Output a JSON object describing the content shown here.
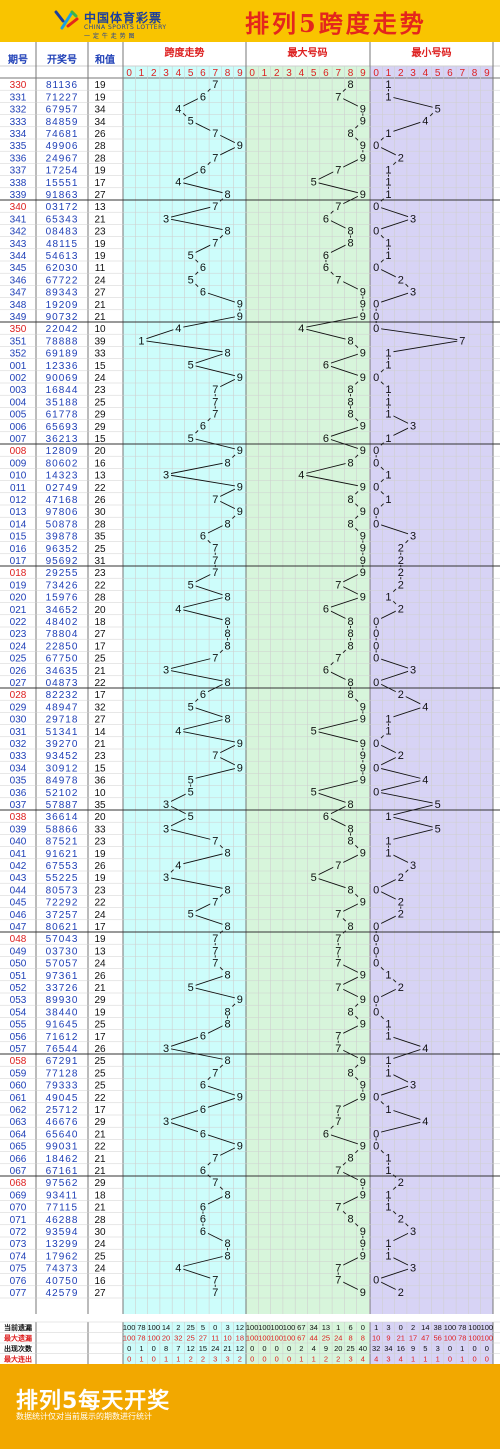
{
  "header": {
    "logo_cn": "中国体育彩票",
    "logo_en": "CHINA SPORTS LOTTERY",
    "logo_sub": "一 定 牛 走 势 图",
    "title": "排列5跨度走势"
  },
  "columns": {
    "period": "期号",
    "number": "开奖号",
    "sum": "和值",
    "span": "跨度走势",
    "max": "最大号码",
    "min": "最小号码"
  },
  "digits": [
    "0",
    "1",
    "2",
    "3",
    "4",
    "5",
    "6",
    "7",
    "8",
    "9"
  ],
  "rows": [
    [
      "330",
      "81136",
      "19",
      7,
      8,
      1
    ],
    [
      "331",
      "71227",
      "19",
      6,
      7,
      1
    ],
    [
      "332",
      "67957",
      "34",
      4,
      9,
      5
    ],
    [
      "333",
      "84859",
      "34",
      5,
      9,
      4
    ],
    [
      "334",
      "74681",
      "26",
      7,
      8,
      1
    ],
    [
      "335",
      "49906",
      "28",
      9,
      9,
      0
    ],
    [
      "336",
      "24967",
      "28",
      7,
      9,
      2
    ],
    [
      "337",
      "17254",
      "19",
      6,
      7,
      1
    ],
    [
      "338",
      "15551",
      "17",
      4,
      5,
      1
    ],
    [
      "339",
      "91863",
      "27",
      8,
      9,
      1
    ],
    [
      "340",
      "03172",
      "13",
      7,
      7,
      0
    ],
    [
      "341",
      "65343",
      "21",
      3,
      6,
      3
    ],
    [
      "342",
      "08483",
      "23",
      8,
      8,
      0
    ],
    [
      "343",
      "48115",
      "19",
      7,
      8,
      1
    ],
    [
      "344",
      "54613",
      "19",
      5,
      6,
      1
    ],
    [
      "345",
      "62030",
      "11",
      6,
      6,
      0
    ],
    [
      "346",
      "67722",
      "24",
      5,
      7,
      2
    ],
    [
      "347",
      "89343",
      "27",
      6,
      9,
      3
    ],
    [
      "348",
      "19209",
      "21",
      9,
      9,
      0
    ],
    [
      "349",
      "90732",
      "21",
      9,
      9,
      0
    ],
    [
      "350",
      "22042",
      "10",
      4,
      4,
      0
    ],
    [
      "351",
      "78888",
      "39",
      1,
      8,
      7
    ],
    [
      "352",
      "69189",
      "33",
      8,
      9,
      1
    ],
    [
      "001",
      "12336",
      "15",
      5,
      6,
      1
    ],
    [
      "002",
      "90069",
      "24",
      9,
      9,
      0
    ],
    [
      "003",
      "16844",
      "23",
      7,
      8,
      1
    ],
    [
      "004",
      "35188",
      "25",
      7,
      8,
      1
    ],
    [
      "005",
      "61778",
      "29",
      7,
      8,
      1
    ],
    [
      "006",
      "65693",
      "29",
      6,
      9,
      3
    ],
    [
      "007",
      "36213",
      "15",
      5,
      6,
      1
    ],
    [
      "008",
      "12809",
      "20",
      9,
      9,
      0
    ],
    [
      "009",
      "80602",
      "16",
      8,
      8,
      0
    ],
    [
      "010",
      "14323",
      "13",
      3,
      4,
      1
    ],
    [
      "011",
      "02749",
      "22",
      9,
      9,
      0
    ],
    [
      "012",
      "47168",
      "26",
      7,
      8,
      1
    ],
    [
      "013",
      "97806",
      "30",
      9,
      9,
      0
    ],
    [
      "014",
      "50878",
      "28",
      8,
      8,
      0
    ],
    [
      "015",
      "39878",
      "35",
      6,
      9,
      3
    ],
    [
      "016",
      "96352",
      "25",
      7,
      9,
      2
    ],
    [
      "017",
      "95692",
      "31",
      7,
      9,
      2
    ],
    [
      "018",
      "29255",
      "23",
      7,
      9,
      2
    ],
    [
      "019",
      "73426",
      "22",
      5,
      7,
      2
    ],
    [
      "020",
      "15976",
      "28",
      8,
      9,
      1
    ],
    [
      "021",
      "34652",
      "20",
      4,
      6,
      2
    ],
    [
      "022",
      "48402",
      "18",
      8,
      8,
      0
    ],
    [
      "023",
      "78804",
      "27",
      8,
      8,
      0
    ],
    [
      "024",
      "22850",
      "17",
      8,
      8,
      0
    ],
    [
      "025",
      "67750",
      "25",
      7,
      7,
      0
    ],
    [
      "026",
      "34635",
      "21",
      3,
      6,
      3
    ],
    [
      "027",
      "04873",
      "22",
      8,
      8,
      0
    ],
    [
      "028",
      "82232",
      "17",
      6,
      8,
      2
    ],
    [
      "029",
      "48947",
      "32",
      5,
      9,
      4
    ],
    [
      "030",
      "29718",
      "27",
      8,
      9,
      1
    ],
    [
      "031",
      "51341",
      "14",
      4,
      5,
      1
    ],
    [
      "032",
      "39270",
      "21",
      9,
      9,
      0
    ],
    [
      "033",
      "93452",
      "23",
      7,
      9,
      2
    ],
    [
      "034",
      "30912",
      "15",
      9,
      9,
      0
    ],
    [
      "035",
      "84978",
      "36",
      5,
      9,
      4
    ],
    [
      "036",
      "52102",
      "10",
      5,
      5,
      0
    ],
    [
      "037",
      "57887",
      "35",
      3,
      8,
      5
    ],
    [
      "038",
      "36614",
      "20",
      5,
      6,
      1
    ],
    [
      "039",
      "58866",
      "33",
      3,
      8,
      5
    ],
    [
      "040",
      "87521",
      "23",
      7,
      8,
      1
    ],
    [
      "041",
      "91621",
      "19",
      8,
      9,
      1
    ],
    [
      "042",
      "67553",
      "26",
      4,
      7,
      3
    ],
    [
      "043",
      "55225",
      "19",
      3,
      5,
      2
    ],
    [
      "044",
      "80573",
      "23",
      8,
      8,
      0
    ],
    [
      "045",
      "72292",
      "22",
      7,
      9,
      2
    ],
    [
      "046",
      "37257",
      "24",
      5,
      7,
      2
    ],
    [
      "047",
      "80621",
      "17",
      8,
      8,
      0
    ],
    [
      "048",
      "57043",
      "19",
      7,
      7,
      0
    ],
    [
      "049",
      "03730",
      "13",
      7,
      7,
      0
    ],
    [
      "050",
      "57057",
      "24",
      7,
      7,
      0
    ],
    [
      "051",
      "97361",
      "26",
      8,
      9,
      1
    ],
    [
      "052",
      "33726",
      "21",
      5,
      7,
      2
    ],
    [
      "053",
      "89930",
      "29",
      9,
      9,
      0
    ],
    [
      "054",
      "38440",
      "19",
      8,
      8,
      0
    ],
    [
      "055",
      "91645",
      "25",
      8,
      9,
      1
    ],
    [
      "056",
      "71612",
      "17",
      6,
      7,
      1
    ],
    [
      "057",
      "76544",
      "26",
      3,
      7,
      4
    ],
    [
      "058",
      "67291",
      "25",
      8,
      9,
      1
    ],
    [
      "059",
      "77128",
      "25",
      7,
      8,
      1
    ],
    [
      "060",
      "79333",
      "25",
      6,
      9,
      3
    ],
    [
      "061",
      "49045",
      "22",
      9,
      9,
      0
    ],
    [
      "062",
      "25712",
      "17",
      6,
      7,
      1
    ],
    [
      "063",
      "46676",
      "29",
      3,
      7,
      4
    ],
    [
      "064",
      "65640",
      "21",
      6,
      6,
      0
    ],
    [
      "065",
      "99031",
      "22",
      9,
      9,
      0
    ],
    [
      "066",
      "18462",
      "21",
      7,
      8,
      1
    ],
    [
      "067",
      "67161",
      "21",
      6,
      7,
      1
    ],
    [
      "068",
      "97562",
      "29",
      7,
      9,
      2
    ],
    [
      "069",
      "93411",
      "18",
      8,
      9,
      1
    ],
    [
      "070",
      "77115",
      "21",
      6,
      7,
      1
    ],
    [
      "071",
      "46288",
      "28",
      6,
      8,
      2
    ],
    [
      "072",
      "93594",
      "30",
      6,
      9,
      3
    ],
    [
      "073",
      "13299",
      "24",
      8,
      9,
      1
    ],
    [
      "074",
      "17962",
      "25",
      8,
      9,
      1
    ],
    [
      "075",
      "74373",
      "24",
      4,
      7,
      3
    ],
    [
      "076",
      "40750",
      "16",
      7,
      7,
      0
    ],
    [
      "077",
      "42579",
      "27",
      7,
      9,
      2
    ]
  ],
  "stats": {
    "labels": [
      "当前遗漏",
      "最大遗漏",
      "出现次数",
      "最大连出"
    ],
    "rows": [
      [
        "100",
        "78",
        "100",
        "14",
        "2",
        "25",
        "5",
        "0",
        "3",
        "12",
        "100",
        "100",
        "100",
        "100",
        "67",
        "34",
        "13",
        "1",
        "6",
        "0",
        "1",
        "3",
        "0",
        "2",
        "14",
        "38",
        "100",
        "78",
        "100",
        "100"
      ],
      [
        "100",
        "78",
        "100",
        "20",
        "32",
        "25",
        "27",
        "11",
        "10",
        "18",
        "100",
        "100",
        "100",
        "100",
        "67",
        "44",
        "25",
        "24",
        "8",
        "8",
        "10",
        "9",
        "21",
        "17",
        "47",
        "56",
        "100",
        "78",
        "100",
        "100"
      ],
      [
        "0",
        "1",
        "0",
        "8",
        "7",
        "12",
        "15",
        "24",
        "21",
        "12",
        "0",
        "0",
        "0",
        "0",
        "2",
        "4",
        "9",
        "20",
        "25",
        "40",
        "32",
        "34",
        "16",
        "9",
        "5",
        "3",
        "0",
        "1",
        "0",
        "0"
      ],
      [
        "0",
        "1",
        "0",
        "1",
        "1",
        "2",
        "2",
        "3",
        "3",
        "2",
        "0",
        "0",
        "0",
        "0",
        "1",
        "1",
        "2",
        "2",
        "3",
        "4",
        "4",
        "3",
        "4",
        "1",
        "1",
        "1",
        "0",
        "1",
        "0",
        "0"
      ]
    ]
  },
  "footer": {
    "title": "排列5每天开奖",
    "note": "数据统计仅对当前展示的期数进行统计"
  },
  "colors": {
    "span_bg": "#cdfdfb",
    "max_bg": "#d7f5db",
    "min_bg": "#d7d3f5",
    "header_bg": "#ffffff",
    "grid": "#cfcfcf",
    "sep": "#777777",
    "period_blue": "#1e3fb7",
    "period_red": "#dd1f1f",
    "digit_red": "#dd1f1f",
    "line": "#111111"
  },
  "chart_data": {
    "type": "line",
    "title": "排列5跨度走势",
    "x": [
      "330",
      "331",
      "332",
      "333",
      "334",
      "335",
      "336",
      "337",
      "338",
      "339",
      "340",
      "341",
      "342",
      "343",
      "344",
      "345",
      "346",
      "347",
      "348",
      "349",
      "350",
      "351",
      "352",
      "001",
      "002",
      "003",
      "004",
      "005",
      "006",
      "007",
      "008",
      "009",
      "010",
      "011",
      "012",
      "013",
      "014",
      "015",
      "016",
      "017",
      "018",
      "019",
      "020",
      "021",
      "022",
      "023",
      "024",
      "025",
      "026",
      "027",
      "028",
      "029",
      "030",
      "031",
      "032",
      "033",
      "034",
      "035",
      "036",
      "037",
      "038",
      "039",
      "040",
      "041",
      "042",
      "043",
      "044",
      "045",
      "046",
      "047",
      "048",
      "049",
      "050",
      "051",
      "052",
      "053",
      "054",
      "055",
      "056",
      "057",
      "058",
      "059",
      "060",
      "061",
      "062",
      "063",
      "064",
      "065",
      "066",
      "067",
      "068",
      "069",
      "070",
      "071",
      "072",
      "073",
      "074",
      "075",
      "076",
      "077"
    ],
    "series": [
      {
        "name": "跨度走势",
        "values": [
          7,
          6,
          4,
          5,
          7,
          9,
          7,
          6,
          4,
          8,
          7,
          3,
          8,
          7,
          5,
          6,
          5,
          6,
          9,
          9,
          4,
          1,
          8,
          5,
          9,
          7,
          7,
          7,
          6,
          5,
          9,
          8,
          3,
          9,
          7,
          9,
          8,
          6,
          7,
          7,
          7,
          5,
          8,
          4,
          8,
          8,
          8,
          7,
          3,
          8,
          6,
          5,
          8,
          4,
          9,
          7,
          9,
          5,
          5,
          3,
          5,
          3,
          7,
          8,
          4,
          3,
          8,
          7,
          5,
          8,
          7,
          7,
          7,
          8,
          5,
          9,
          8,
          8,
          6,
          3,
          8,
          7,
          6,
          9,
          6,
          3,
          6,
          9,
          7,
          6,
          7,
          8,
          6,
          6,
          6,
          8,
          8,
          4,
          7,
          7
        ]
      },
      {
        "name": "最大号码",
        "values": [
          8,
          7,
          9,
          9,
          8,
          9,
          9,
          7,
          5,
          9,
          7,
          6,
          8,
          8,
          6,
          6,
          7,
          9,
          9,
          9,
          4,
          8,
          9,
          6,
          9,
          8,
          8,
          8,
          9,
          6,
          9,
          8,
          4,
          9,
          8,
          9,
          8,
          9,
          9,
          9,
          9,
          7,
          9,
          6,
          8,
          8,
          8,
          7,
          6,
          8,
          8,
          9,
          9,
          5,
          9,
          9,
          9,
          9,
          5,
          8,
          6,
          8,
          8,
          9,
          7,
          5,
          8,
          9,
          7,
          8,
          7,
          7,
          7,
          9,
          7,
          9,
          8,
          9,
          7,
          7,
          9,
          8,
          9,
          9,
          7,
          7,
          6,
          9,
          8,
          7,
          9,
          9,
          7,
          8,
          9,
          9,
          9,
          7,
          7,
          9
        ]
      },
      {
        "name": "最小号码",
        "values": [
          1,
          1,
          5,
          4,
          1,
          0,
          2,
          1,
          1,
          1,
          0,
          3,
          0,
          1,
          1,
          0,
          2,
          3,
          0,
          0,
          0,
          7,
          1,
          1,
          0,
          1,
          1,
          1,
          3,
          1,
          0,
          0,
          1,
          0,
          1,
          0,
          0,
          3,
          2,
          2,
          2,
          2,
          1,
          2,
          0,
          0,
          0,
          0,
          3,
          0,
          2,
          4,
          1,
          1,
          0,
          2,
          0,
          4,
          0,
          5,
          1,
          5,
          1,
          1,
          3,
          2,
          0,
          2,
          2,
          0,
          0,
          0,
          0,
          1,
          2,
          0,
          0,
          1,
          1,
          4,
          1,
          1,
          3,
          0,
          1,
          4,
          0,
          0,
          1,
          1,
          2,
          1,
          1,
          2,
          3,
          1,
          1,
          3,
          0,
          2
        ]
      }
    ],
    "ylim": [
      0,
      9
    ]
  }
}
